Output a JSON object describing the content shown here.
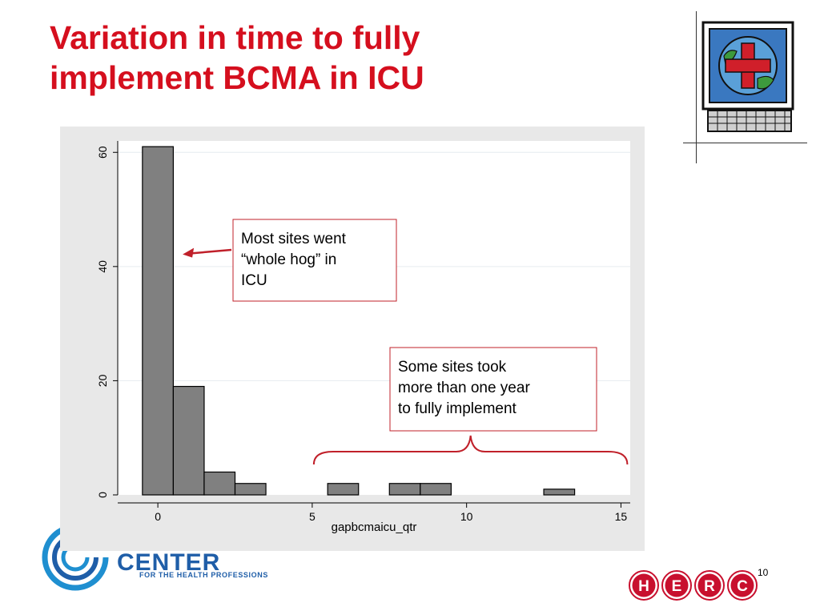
{
  "slide": {
    "title_line1": "Variation in time to fully",
    "title_line2": "implement BCMA in ICU",
    "page_number": "10",
    "logo_text": "CENTER",
    "logo_subtext": "FOR THE HEALTH PROFESSIONS",
    "herc_letters": [
      "H",
      "E",
      "R",
      "C"
    ],
    "colors": {
      "title": "#d50f1e",
      "annotation": "#c0202a",
      "bar": "#808080",
      "logo_blue": "#1f5ea8",
      "herc_red": "#c8102e"
    },
    "icons": [
      "monitor-medical-cross-icon",
      "center-logo-icon",
      "herc-logo-icon"
    ]
  },
  "chart_data": {
    "type": "bar",
    "title": "",
    "xlabel": "gapbcmaicu_qtr",
    "ylabel": "",
    "bin_width": 1,
    "x": [
      0,
      1,
      2,
      3,
      6,
      8,
      9,
      13
    ],
    "values": [
      61,
      19,
      4,
      2,
      2,
      2,
      2,
      1
    ],
    "xlim": [
      -1.3,
      15.3
    ],
    "ylim": [
      0,
      62
    ],
    "xticks": [
      0,
      5,
      10,
      15
    ],
    "yticks": [
      0,
      20,
      40,
      60
    ],
    "grid": true,
    "annotations": [
      {
        "text": "Most sites went “whole hog” in ICU",
        "lines": [
          "Most sites went",
          "“whole hog” in",
          "ICU"
        ],
        "points_to_x": 0.7,
        "points_to_y": 42
      },
      {
        "text": "Some sites took more than one year to fully implement",
        "lines": [
          "Some sites took",
          "more than one year",
          "to fully implement"
        ],
        "brace_from_x": 5,
        "brace_to_x": 15
      }
    ]
  }
}
